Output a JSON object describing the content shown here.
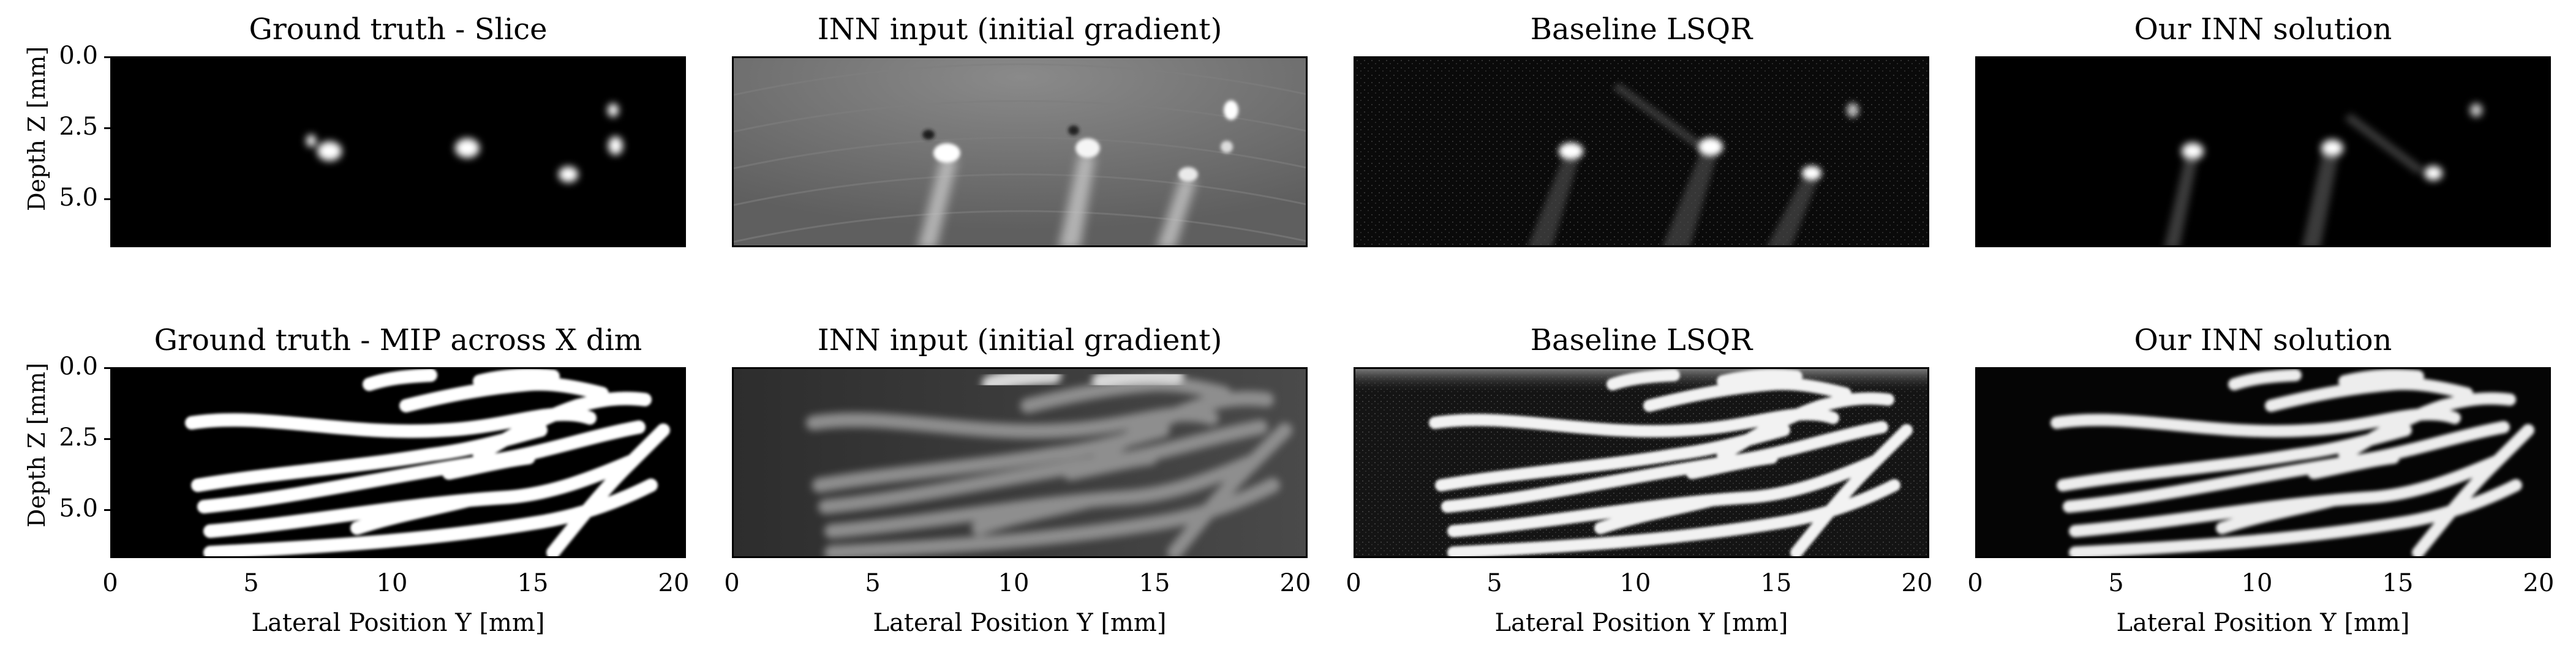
{
  "figure": {
    "rows": [
      {
        "panels": [
          {
            "title": "Ground truth - Slice",
            "style": "blobs-black"
          },
          {
            "title": "INN input (initial gradient)",
            "style": "gradient-gray"
          },
          {
            "title": "Baseline LSQR",
            "style": "lsqr-dark"
          },
          {
            "title": "Our INN solution",
            "style": "inn-dark"
          }
        ],
        "ylabel": "Depth Z [mm]",
        "yticks": [
          "0.0",
          "2.5",
          "5.0"
        ]
      },
      {
        "panels": [
          {
            "title": "Ground truth - MIP across X dim",
            "style": "vessels-bright"
          },
          {
            "title": "INN input (initial gradient)",
            "style": "vessels-gray"
          },
          {
            "title": "Baseline LSQR",
            "style": "vessels-lsqr"
          },
          {
            "title": "Our INN solution",
            "style": "vessels-inn"
          }
        ],
        "ylabel": "Depth Z [mm]",
        "yticks": [
          "0.0",
          "2.5",
          "5.0"
        ],
        "xlabel": "Lateral Position Y [mm]",
        "xticks": [
          "0",
          "5",
          "10",
          "15",
          "20"
        ]
      }
    ],
    "colors": {
      "background": "#000000",
      "foreground": "#ffffff",
      "frame": "#000000"
    }
  }
}
